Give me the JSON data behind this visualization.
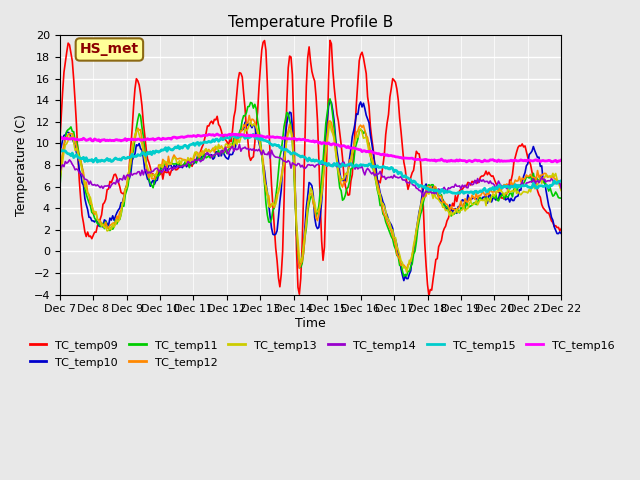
{
  "title": "Temperature Profile B",
  "xlabel": "Time",
  "ylabel": "Temperature (C)",
  "ylim": [
    -4,
    20
  ],
  "xlim": [
    0,
    360
  ],
  "bg_color": "#e8e8e8",
  "plot_bg_color": "#e8e8e8",
  "annotation_text": "HS_met",
  "annotation_bg": "#ffff99",
  "annotation_border": "#8b6914",
  "series_colors": {
    "TC_temp09": "#ff0000",
    "TC_temp10": "#0000cc",
    "TC_temp11": "#00cc00",
    "TC_temp12": "#ff8800",
    "TC_temp13": "#cccc00",
    "TC_temp14": "#9900cc",
    "TC_temp15": "#00cccc",
    "TC_temp16": "#ff00ff"
  },
  "xtick_labels": [
    "Dec 7",
    "Dec 8",
    "Dec 9",
    "Dec 10",
    "Dec 11",
    "Dec 12",
    "Dec 13",
    "Dec 14",
    "Dec 15",
    "Dec 16",
    "Dec 17",
    "Dec 18",
    "Dec 19",
    "Dec 20",
    "Dec 21",
    "Dec 22"
  ],
  "xtick_positions": [
    0,
    24,
    48,
    72,
    96,
    120,
    144,
    168,
    192,
    216,
    240,
    264,
    288,
    312,
    336,
    360
  ]
}
